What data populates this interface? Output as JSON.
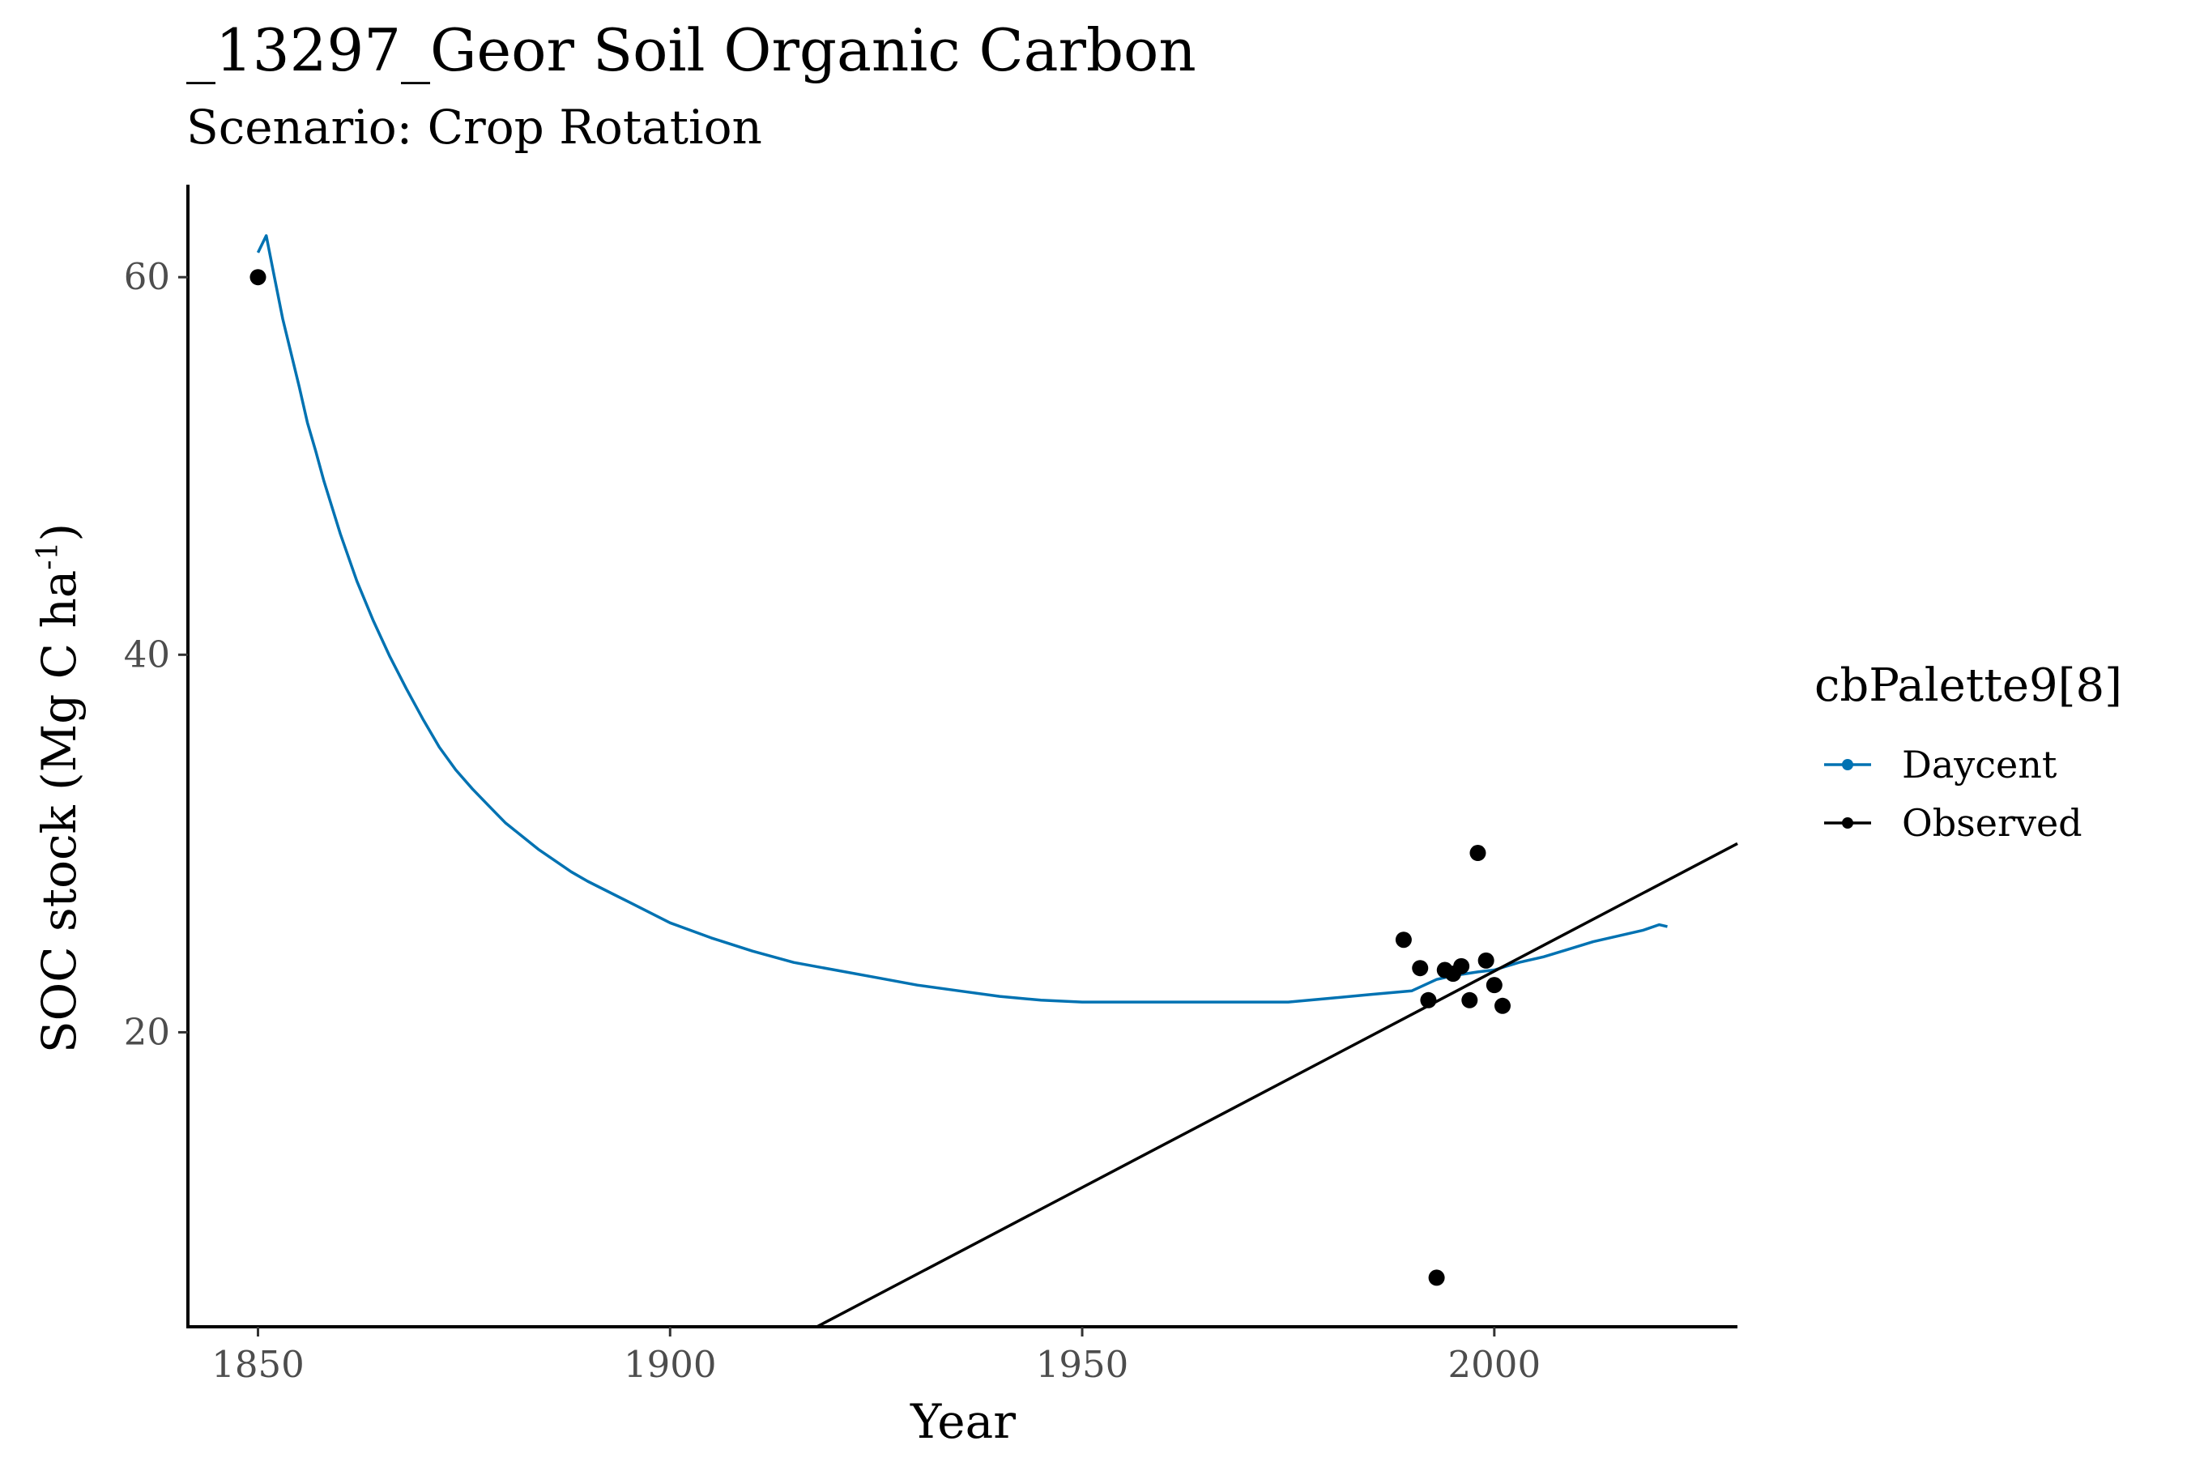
{
  "chart_data": {
    "type": "line",
    "title": "_13297_Geor Soil Organic Carbon",
    "subtitle": "Scenario: Crop Rotation",
    "xlabel": "Year",
    "ylabel": "SOC stock (Mg C ha",
    "ylabel_superscript": "-1",
    "ylabel_close": ")",
    "xlim": [
      1841.5,
      2029.5
    ],
    "ylim": [
      4.4,
      64.9
    ],
    "x_ticks": [
      1850,
      1900,
      1950,
      2000
    ],
    "y_ticks": [
      20,
      40,
      60
    ],
    "legend": {
      "title": "cbPalette9[8]",
      "position": "right",
      "entries": [
        {
          "label": "Daycent",
          "color": "#0072B2"
        },
        {
          "label": "Observed",
          "color": "#000000"
        }
      ]
    },
    "series": [
      {
        "name": "Daycent",
        "kind": "line",
        "color": "#0072B2",
        "x": [
          1850,
          1851,
          1852,
          1853,
          1854,
          1855,
          1856,
          1857,
          1858,
          1860,
          1862,
          1864,
          1866,
          1868,
          1870,
          1872,
          1874,
          1876,
          1878,
          1880,
          1882,
          1884,
          1886,
          1888,
          1890,
          1895,
          1900,
          1905,
          1910,
          1915,
          1920,
          1925,
          1930,
          1935,
          1940,
          1945,
          1950,
          1955,
          1960,
          1965,
          1970,
          1975,
          1980,
          1985,
          1990,
          1993,
          1995,
          1998,
          2000,
          2003,
          2006,
          2009,
          2012,
          2015,
          2018,
          2020,
          2021
        ],
        "y": [
          61.3,
          62.2,
          60.0,
          57.8,
          56.0,
          54.2,
          52.3,
          50.8,
          49.2,
          46.4,
          43.9,
          41.8,
          39.9,
          38.2,
          36.6,
          35.1,
          33.9,
          32.9,
          32.0,
          31.1,
          30.4,
          29.7,
          29.1,
          28.5,
          28.0,
          26.9,
          25.8,
          25.0,
          24.3,
          23.7,
          23.3,
          22.9,
          22.5,
          22.2,
          21.9,
          21.7,
          21.6,
          21.6,
          21.6,
          21.6,
          21.6,
          21.6,
          21.8,
          22.0,
          22.2,
          22.8,
          23.0,
          23.2,
          23.3,
          23.7,
          24.0,
          24.4,
          24.8,
          25.1,
          25.4,
          25.7,
          25.6
        ]
      },
      {
        "name": "Observed",
        "kind": "points",
        "color": "#000000",
        "x": [
          1850,
          1989,
          1991,
          1992,
          1993,
          1994,
          1995,
          1996,
          1997,
          1998,
          1999,
          2000,
          2001
        ],
        "y": [
          60.0,
          24.9,
          23.4,
          21.7,
          7.0,
          23.3,
          23.1,
          23.5,
          21.7,
          29.5,
          23.8,
          22.5,
          21.4
        ]
      },
      {
        "name": "Observed trend",
        "kind": "line",
        "color": "#000000",
        "x": [
          1917.8,
          2029.5
        ],
        "y": [
          4.4,
          30.0
        ]
      }
    ]
  }
}
